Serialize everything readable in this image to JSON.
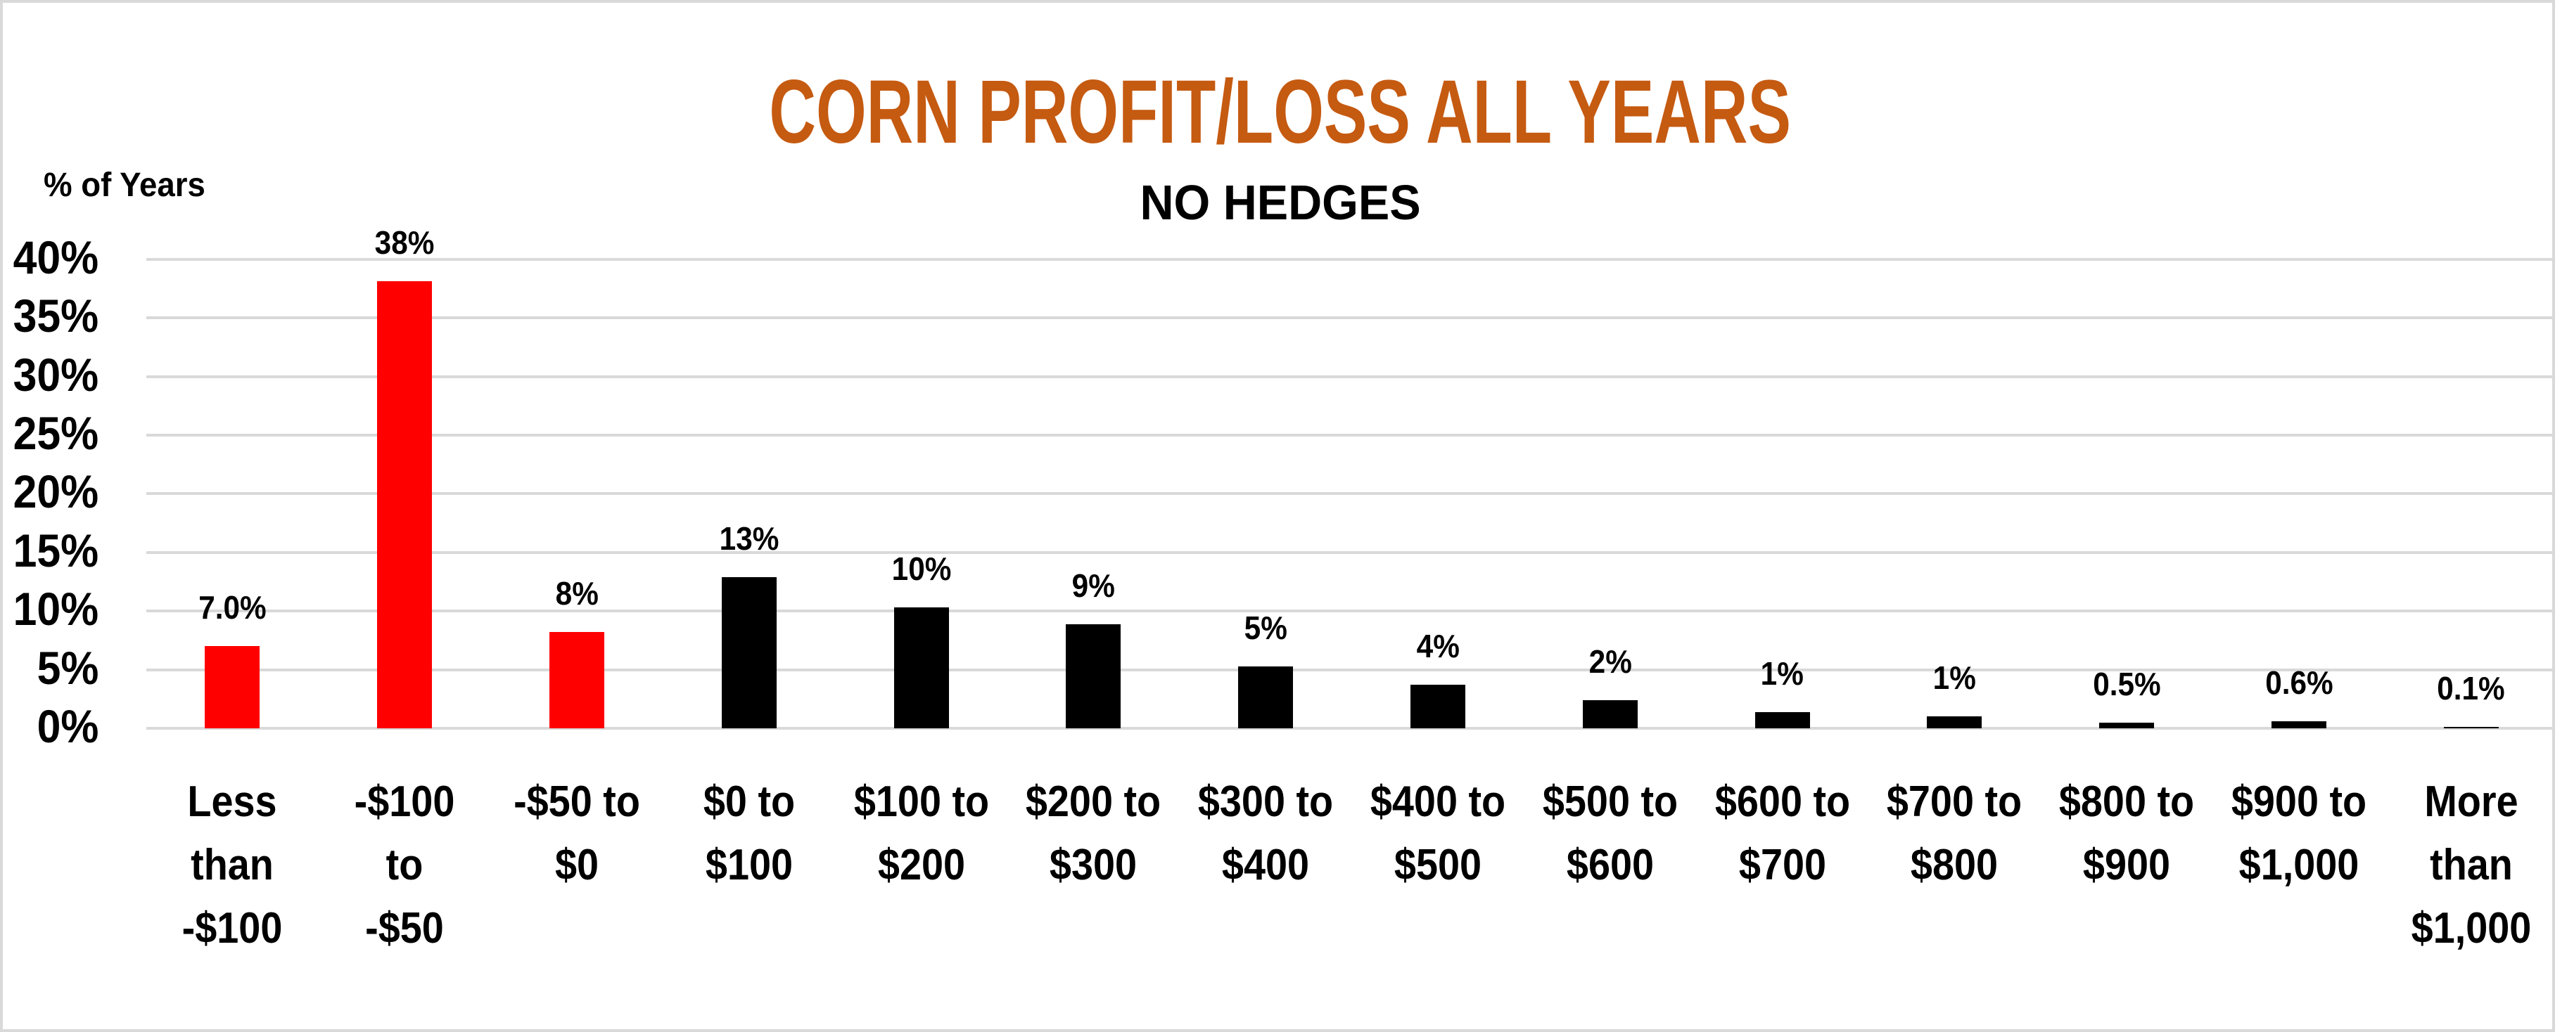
{
  "chart_data": {
    "type": "bar",
    "title": "CORN PROFIT/LOSS ALL YEARS",
    "subtitle": "NO HEDGES",
    "xlabel": "",
    "ylabel": "% of Years",
    "ylim": [
      0,
      40
    ],
    "yticks": [
      "0%",
      "5%",
      "10%",
      "15%",
      "20%",
      "25%",
      "30%",
      "35%",
      "40%"
    ],
    "grid": true,
    "legend": "none",
    "categories": [
      [
        "Less",
        "than",
        "-$100"
      ],
      [
        "-$100",
        "to",
        "-$50"
      ],
      [
        "-$50 to",
        "$0"
      ],
      [
        "$0 to",
        "$100"
      ],
      [
        "$100 to",
        "$200"
      ],
      [
        "$200 to",
        "$300"
      ],
      [
        "$300 to",
        "$400"
      ],
      [
        "$400 to",
        "$500"
      ],
      [
        "$500 to",
        "$600"
      ],
      [
        "$600 to",
        "$700"
      ],
      [
        "$700 to",
        "$800"
      ],
      [
        "$800 to",
        "$900"
      ],
      [
        "$900 to",
        "$1,000"
      ],
      [
        "More",
        "than",
        "$1,000"
      ]
    ],
    "values": [
      7.0,
      38.1,
      8.2,
      12.9,
      10.3,
      8.9,
      5.3,
      3.7,
      2.4,
      1.4,
      1.0,
      0.5,
      0.6,
      0.1
    ],
    "data_labels": [
      "7.0%",
      "38%",
      "8%",
      "13%",
      "10%",
      "9%",
      "5%",
      "4%",
      "2%",
      "1%",
      "1%",
      "0.5%",
      "0.6%",
      "0.1%"
    ],
    "bar_colors": [
      "#FF0000",
      "#FF0000",
      "#FF0000",
      "#000000",
      "#000000",
      "#000000",
      "#000000",
      "#000000",
      "#000000",
      "#000000",
      "#000000",
      "#000000",
      "#000000",
      "#000000"
    ]
  },
  "colors": {
    "title": "#C55A11",
    "loss_bar": "#FF0000",
    "profit_bar": "#000000",
    "gridline": "#D9D9D9"
  }
}
